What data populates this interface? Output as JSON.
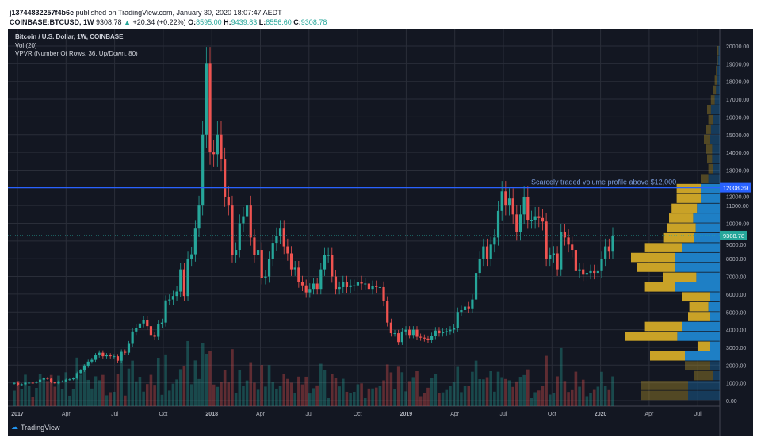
{
  "header": {
    "user": "j13744832257f4b6e",
    "published": "published on TradingView.com, January 30, 2020 18:07:47 AEDT",
    "symbol": "COINBASE:BTCUSD, 1W",
    "last": "9308.78",
    "change": "+20.34 (+0.22%)",
    "o_label": "O:",
    "o": "8595.00",
    "h_label": "H:",
    "h": "9439.83",
    "l_label": "L:",
    "l": "8556.60",
    "c_label": "C:",
    "c": "9308.78"
  },
  "legend": {
    "title": "Bitcoin / U.S. Dollar, 1W, COINBASE",
    "vol": "Vol (20)",
    "vpvr": "VPVR (Number Of Rows, 36, Up/Down, 80)"
  },
  "annotation": "Scarcely traded volume profile above $12,000",
  "brand": "TradingView",
  "colors": {
    "up": "#26a69a",
    "down": "#ef5350",
    "vp_up": "#1e7fc5",
    "vp_down": "#c9a227",
    "line": "#2962ff",
    "bg": "#131722"
  },
  "chart_data": {
    "type": "candlestick",
    "y_range": [
      0,
      20000
    ],
    "y_ticks": [
      "0.00",
      "1000.00",
      "2000.00",
      "3000.00",
      "4000.00",
      "5000.00",
      "6000.00",
      "7000.00",
      "8000.00",
      "9000.00",
      "10000.00",
      "11000.00",
      "12000.00",
      "13000.00",
      "14000.00",
      "15000.00",
      "16000.00",
      "17000.00",
      "18000.00",
      "19000.00",
      "20000.00"
    ],
    "x_ticks": [
      "2017",
      "Apr",
      "Jul",
      "Oct",
      "2018",
      "Apr",
      "Jul",
      "Oct",
      "2019",
      "Apr",
      "Jul",
      "Oct",
      "2020",
      "Apr",
      "Jul"
    ],
    "horizontal_line": {
      "value": 12008.39,
      "label": "12008.39"
    },
    "last_price": {
      "value": 9308.78,
      "label": "9308.78"
    },
    "weekly_close": [
      1000,
      900,
      920,
      1010,
      1010,
      1000,
      1050,
      1180,
      1270,
      1230,
      1030,
      970,
      1080,
      1080,
      1180,
      1200,
      1250,
      1550,
      1700,
      1950,
      2200,
      2300,
      2550,
      2700,
      2500,
      2550,
      2500,
      2500,
      2250,
      2750,
      2700,
      3200,
      3900,
      4100,
      4350,
      4550,
      4200,
      3700,
      3600,
      4300,
      4400,
      5650,
      5700,
      5900,
      6150,
      7400,
      5900,
      8000,
      8250,
      9700,
      11000,
      15000,
      19000,
      14000,
      13900,
      15000,
      13600,
      11500,
      11000,
      8200,
      8500,
      10000,
      10400,
      11000,
      9200,
      8200,
      8500,
      6900,
      7000,
      8000,
      8900,
      9300,
      9700,
      8700,
      8300,
      7400,
      7500,
      6700,
      6500,
      6100,
      6300,
      6600,
      6300,
      7400,
      8200,
      8200,
      7000,
      6300,
      6400,
      6700,
      6400,
      6500,
      6500,
      6700,
      6600,
      6600,
      6300,
      6450,
      6400,
      6400,
      5600,
      4400,
      3800,
      3800,
      3300,
      3900,
      4000,
      3700,
      4000,
      3600,
      3550,
      3500,
      3400,
      3650,
      3950,
      3800,
      3870,
      3920,
      4000,
      4100,
      5000,
      5100,
      5300,
      5200,
      5700,
      7200,
      8000,
      8700,
      8000,
      8800,
      9200,
      10700,
      11800,
      11000,
      11400,
      10500,
      9500,
      10500,
      11500,
      10200,
      10200,
      10400,
      10300,
      10100,
      8000,
      8200,
      8300,
      7400,
      9500,
      9200,
      8800,
      8500,
      7300,
      7400,
      7100,
      7200,
      7300,
      7200,
      7300,
      8000,
      8700,
      8400,
      9308.78
    ],
    "vpvr_rows": {
      "rows": 36,
      "price_step": 555.56,
      "up": [
        50,
        50,
        10,
        15,
        55,
        15,
        67,
        60,
        15,
        18,
        15,
        70,
        37,
        70,
        70,
        60,
        40,
        38,
        42,
        36,
        30,
        30,
        18,
        10,
        12,
        12,
        15,
        14,
        10,
        14,
        8,
        6,
        5,
        4,
        3,
        2
      ],
      "down": [
        75,
        75,
        30,
        40,
        55,
        20,
        83,
        58,
        35,
        30,
        45,
        48,
        53,
        60,
        70,
        58,
        48,
        45,
        38,
        40,
        38,
        38,
        12,
        8,
        8,
        10,
        10,
        8,
        8,
        6,
        6,
        4,
        3,
        2,
        2,
        2
      ]
    }
  }
}
